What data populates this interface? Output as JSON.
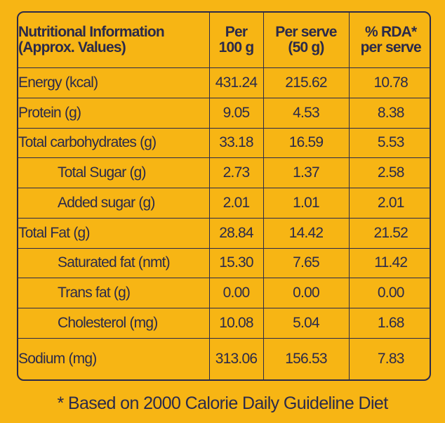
{
  "table": {
    "headers": {
      "col1_line1": "Nutritional Information",
      "col1_line2": "(Approx. Values)",
      "col2_line1": "Per",
      "col2_line2": "100 g",
      "col3_line1": "Per serve",
      "col3_line2": "(50 g)",
      "col4_line1": "% RDA*",
      "col4_line2": "per serve"
    },
    "rows": [
      {
        "label": "Energy (kcal)",
        "per100": "431.24",
        "perServe": "215.62",
        "rda": "10.78"
      },
      {
        "label": "Protein (g)",
        "per100": "9.05",
        "perServe": "4.53",
        "rda": "8.38"
      },
      {
        "label": "Total carbohydrates (g)",
        "per100": "33.18",
        "perServe": "16.59",
        "rda": "5.53"
      },
      {
        "label": "Total Sugar (g)",
        "per100": "2.73",
        "perServe": "1.37",
        "rda": "2.58"
      },
      {
        "label": "Added sugar (g)",
        "per100": "2.01",
        "perServe": "1.01",
        "rda": "2.01"
      },
      {
        "label": "Total Fat (g)",
        "per100": "28.84",
        "perServe": "14.42",
        "rda": "21.52"
      },
      {
        "label": "Saturated fat (nmt)",
        "per100": "15.30",
        "perServe": "7.65",
        "rda": "11.42"
      },
      {
        "label": "Trans fat (g)",
        "per100": "0.00",
        "perServe": "0.00",
        "rda": "0.00"
      },
      {
        "label": "Cholesterol (mg)",
        "per100": "10.08",
        "perServe": "5.04",
        "rda": "1.68"
      },
      {
        "label": "Sodium (mg)",
        "per100": "313.06",
        "perServe": "156.53",
        "rda": "7.83"
      }
    ]
  },
  "footnote": "* Based on 2000 Calorie Daily Guideline Diet",
  "colors": {
    "background": "#F7B514",
    "ink": "#2B2A4A"
  }
}
